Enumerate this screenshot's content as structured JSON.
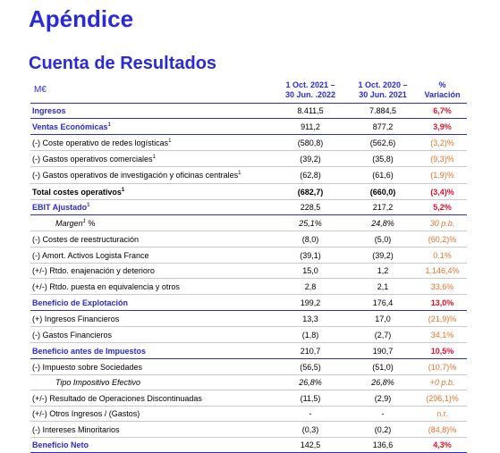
{
  "title": "Apéndice",
  "subtitle": "Cuenta de Resultados",
  "table": {
    "unit": "M€",
    "col1": [
      "1 Oct. 2021 –",
      "30 Jun. .2022"
    ],
    "col2": [
      "1 Oct. 2020 –",
      "30 Jun. 2021"
    ],
    "col3": [
      "%",
      "Variación"
    ],
    "rows": [
      {
        "label": "Ingresos",
        "sup": "",
        "v1": "8.411,5",
        "v2": "7.884,5",
        "v3": "6,7%",
        "style": "blue"
      },
      {
        "label": "Ventas Económicas",
        "sup": "1",
        "v1": "911,2",
        "v2": "877,2",
        "v3": "3,9%",
        "style": "blue"
      },
      {
        "label": "(-) Coste operativo de redes logísticas",
        "sup": "1",
        "v1": "(580,8)",
        "v2": "(562,6)",
        "v3": "(3,2)%",
        "style": "plain"
      },
      {
        "label": "(-) Gastos operativos comerciales",
        "sup": "1",
        "v1": "(39,2)",
        "v2": "(35,8)",
        "v3": "(9,3)%",
        "style": "plain"
      },
      {
        "label": "(-) Gastos operativos de investigación y oficinas centrales",
        "sup": "1",
        "v1": "(62,8)",
        "v2": "(61,6)",
        "v3": "(1,9)%",
        "style": "plain"
      },
      {
        "label": "Total costes operativos",
        "sup": "1",
        "v1": "(682,7)",
        "v2": "(660,0)",
        "v3": "(3,4)%",
        "style": "bold"
      },
      {
        "label": "EBIT Ajustado",
        "sup": "1",
        "v1": "228,5",
        "v2": "217,2",
        "v3": "5,2%",
        "style": "blue"
      },
      {
        "label": "Margen",
        "sup": "1",
        "suffix": " %",
        "v1": "25,1%",
        "v2": "24,8%",
        "v3": "30 p.b.",
        "style": "italic"
      },
      {
        "label": "(-) Costes de reestructuración",
        "sup": "",
        "v1": "(8,0)",
        "v2": "(5,0)",
        "v3": "(60,2)%",
        "style": "plain"
      },
      {
        "label": "(-) Amort. Activos Logista France",
        "sup": "",
        "v1": "(39,1)",
        "v2": "(39,2)",
        "v3": "0.1%",
        "style": "plain"
      },
      {
        "label": "(+/-) Rtdo. enajenación y deterioro",
        "sup": "",
        "v1": "15,0",
        "v2": "1,2",
        "v3": "1.146,4%",
        "style": "plain"
      },
      {
        "label": "(+/-) Rtdo. puesta en equivalencia y otros",
        "sup": "",
        "v1": "2,8",
        "v2": "2,1",
        "v3": "33,6%",
        "style": "plain"
      },
      {
        "label": "Beneficio de Explotación",
        "sup": "",
        "v1": "199,2",
        "v2": "176,4",
        "v3": "13,0%",
        "style": "blue"
      },
      {
        "label": "(+) Ingresos Financieros",
        "sup": "",
        "v1": "13,3",
        "v2": "17,0",
        "v3": "(21,9)%",
        "style": "plain"
      },
      {
        "label": "(-) Gastos Financieros",
        "sup": "",
        "v1": "(1,8)",
        "v2": "(2,7)",
        "v3": "34,1%",
        "style": "plain"
      },
      {
        "label": "Beneficio antes de Impuestos",
        "sup": "",
        "v1": "210,7",
        "v2": "190,7",
        "v3": "10,5%",
        "style": "blue"
      },
      {
        "label": "(-) Impuesto sobre Sociedades",
        "sup": "",
        "v1": "(56,5)",
        "v2": "(51,0)",
        "v3": "(10,7)%",
        "style": "plain"
      },
      {
        "label": "Tipo Impositivo Efectivo",
        "sup": "",
        "v1": "26,8%",
        "v2": "26,8%",
        "v3": "+0 p.b.",
        "style": "italic"
      },
      {
        "label": "(+/-) Resultado de Operaciones Discontinuadas",
        "sup": "",
        "v1": "(11,5)",
        "v2": "(2,9)",
        "v3": "(296,1)%",
        "style": "plain"
      },
      {
        "label": "(+/-) Otros Ingresos / (Gastos)",
        "sup": "",
        "v1": "-",
        "v2": "-",
        "v3": "n.r.",
        "style": "plain"
      },
      {
        "label": "(-) Intereses Minoritarios",
        "sup": "",
        "v1": "(0,3)",
        "v2": "(0,2)",
        "v3": "(84,8)%",
        "style": "plain"
      },
      {
        "label": "Beneficio Neto",
        "sup": "",
        "v1": "142,5",
        "v2": "136,6",
        "v3": "4,3%",
        "style": "blue"
      }
    ]
  }
}
